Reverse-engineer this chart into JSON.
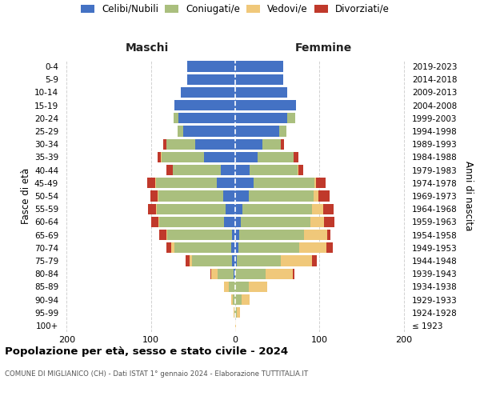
{
  "age_groups": [
    "100+",
    "95-99",
    "90-94",
    "85-89",
    "80-84",
    "75-79",
    "70-74",
    "65-69",
    "60-64",
    "55-59",
    "50-54",
    "45-49",
    "40-44",
    "35-39",
    "30-34",
    "25-29",
    "20-24",
    "15-19",
    "10-14",
    "5-9",
    "0-4"
  ],
  "birth_years": [
    "≤ 1923",
    "1924-1928",
    "1929-1933",
    "1934-1938",
    "1939-1943",
    "1944-1948",
    "1949-1953",
    "1954-1958",
    "1959-1963",
    "1964-1968",
    "1969-1973",
    "1974-1978",
    "1979-1983",
    "1984-1988",
    "1989-1993",
    "1994-1998",
    "1999-2003",
    "2004-2008",
    "2009-2013",
    "2014-2018",
    "2019-2023"
  ],
  "colors": {
    "celibe": "#4472C4",
    "coniugato": "#AABF7E",
    "vedovo": "#F0C87A",
    "divorziato": "#C0392B"
  },
  "maschi": {
    "celibe": [
      0,
      0,
      0,
      0,
      2,
      4,
      5,
      4,
      13,
      11,
      14,
      22,
      17,
      37,
      47,
      62,
      67,
      72,
      65,
      57,
      57
    ],
    "coniugato": [
      0,
      1,
      3,
      8,
      19,
      47,
      67,
      77,
      77,
      82,
      77,
      72,
      57,
      50,
      35,
      6,
      6,
      0,
      0,
      0,
      0
    ],
    "vedovo": [
      0,
      1,
      2,
      5,
      7,
      3,
      4,
      1,
      1,
      1,
      1,
      1,
      0,
      1,
      0,
      0,
      0,
      0,
      0,
      0,
      0
    ],
    "divorziato": [
      0,
      0,
      0,
      0,
      1,
      5,
      6,
      8,
      9,
      9,
      9,
      9,
      8,
      4,
      3,
      0,
      0,
      0,
      0,
      0,
      0
    ]
  },
  "femmine": {
    "nubile": [
      0,
      0,
      0,
      0,
      0,
      2,
      4,
      5,
      7,
      9,
      16,
      22,
      17,
      27,
      32,
      52,
      62,
      72,
      62,
      57,
      57
    ],
    "coniugata": [
      0,
      2,
      8,
      16,
      36,
      52,
      72,
      77,
      82,
      82,
      77,
      72,
      57,
      42,
      22,
      9,
      9,
      0,
      0,
      0,
      0
    ],
    "vedova": [
      1,
      4,
      9,
      22,
      32,
      37,
      32,
      27,
      16,
      13,
      6,
      2,
      1,
      0,
      0,
      0,
      0,
      0,
      0,
      0,
      0
    ],
    "divorziata": [
      0,
      0,
      0,
      0,
      2,
      6,
      8,
      4,
      13,
      13,
      13,
      11,
      6,
      6,
      4,
      0,
      0,
      0,
      0,
      0,
      0
    ]
  },
  "xlim": [
    -205,
    205
  ],
  "xticks": [
    -200,
    -100,
    0,
    100,
    200
  ],
  "xticklabels": [
    "200",
    "100",
    "0",
    "100",
    "200"
  ],
  "title": "Popolazione per età, sesso e stato civile - 2024",
  "subtitle": "COMUNE DI MIGLIANICO (CH) - Dati ISTAT 1° gennaio 2024 - Elaborazione TUTTITALIA.IT",
  "ylabel_left": "Fasce di età",
  "ylabel_right": "Anni di nascita",
  "label_maschi": "Maschi",
  "label_femmine": "Femmine",
  "legend_labels": [
    "Celibi/Nubili",
    "Coniugati/e",
    "Vedovi/e",
    "Divorziati/e"
  ],
  "bg_color": "#FFFFFF",
  "grid_color": "#CCCCCC"
}
